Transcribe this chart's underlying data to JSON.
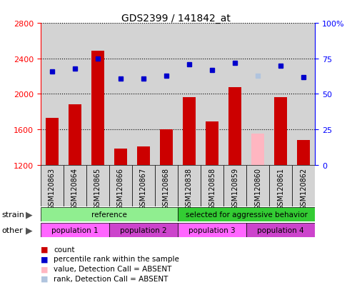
{
  "title": "GDS2399 / 141842_at",
  "samples": [
    "GSM120863",
    "GSM120864",
    "GSM120865",
    "GSM120866",
    "GSM120867",
    "GSM120868",
    "GSM120838",
    "GSM120858",
    "GSM120859",
    "GSM120860",
    "GSM120861",
    "GSM120862"
  ],
  "bar_values": [
    1730,
    1880,
    2490,
    1380,
    1410,
    1600,
    1960,
    1690,
    2080,
    1550,
    1960,
    1480
  ],
  "bar_colors": [
    "#CC0000",
    "#CC0000",
    "#CC0000",
    "#CC0000",
    "#CC0000",
    "#CC0000",
    "#CC0000",
    "#CC0000",
    "#CC0000",
    "#FFB6C1",
    "#CC0000",
    "#CC0000"
  ],
  "rank_values": [
    66,
    68,
    75,
    61,
    61,
    63,
    71,
    67,
    72,
    63,
    70,
    62
  ],
  "rank_colors": [
    "#0000CC",
    "#0000CC",
    "#0000CC",
    "#0000CC",
    "#0000CC",
    "#0000CC",
    "#0000CC",
    "#0000CC",
    "#0000CC",
    "#B0C4DE",
    "#0000CC",
    "#0000CC"
  ],
  "ylim_left": [
    1200,
    2800
  ],
  "ylim_right": [
    0,
    100
  ],
  "yticks_left": [
    1200,
    1600,
    2000,
    2400,
    2800
  ],
  "yticks_right": [
    0,
    25,
    50,
    75,
    100
  ],
  "ytick_right_labels": [
    "0",
    "25",
    "50",
    "75",
    "100%"
  ],
  "strain_groups": [
    {
      "label": "reference",
      "start": 0,
      "end": 6,
      "color": "#90EE90"
    },
    {
      "label": "selected for aggressive behavior",
      "start": 6,
      "end": 12,
      "color": "#33CC33"
    }
  ],
  "other_groups": [
    {
      "label": "population 1",
      "start": 0,
      "end": 3,
      "color": "#FF66FF"
    },
    {
      "label": "population 2",
      "start": 3,
      "end": 6,
      "color": "#CC44CC"
    },
    {
      "label": "population 3",
      "start": 6,
      "end": 9,
      "color": "#FF66FF"
    },
    {
      "label": "population 4",
      "start": 9,
      "end": 12,
      "color": "#CC44CC"
    }
  ],
  "legend_items": [
    {
      "label": "count",
      "color": "#CC0000"
    },
    {
      "label": "percentile rank within the sample",
      "color": "#0000CC"
    },
    {
      "label": "value, Detection Call = ABSENT",
      "color": "#FFB6C1"
    },
    {
      "label": "rank, Detection Call = ABSENT",
      "color": "#B0C4DE"
    }
  ],
  "bar_width": 0.55,
  "rank_marker_size": 5,
  "sample_bg_color": "#D3D3D3",
  "grid_color": "black",
  "grid_linestyle": ":",
  "grid_linewidth": 0.8
}
